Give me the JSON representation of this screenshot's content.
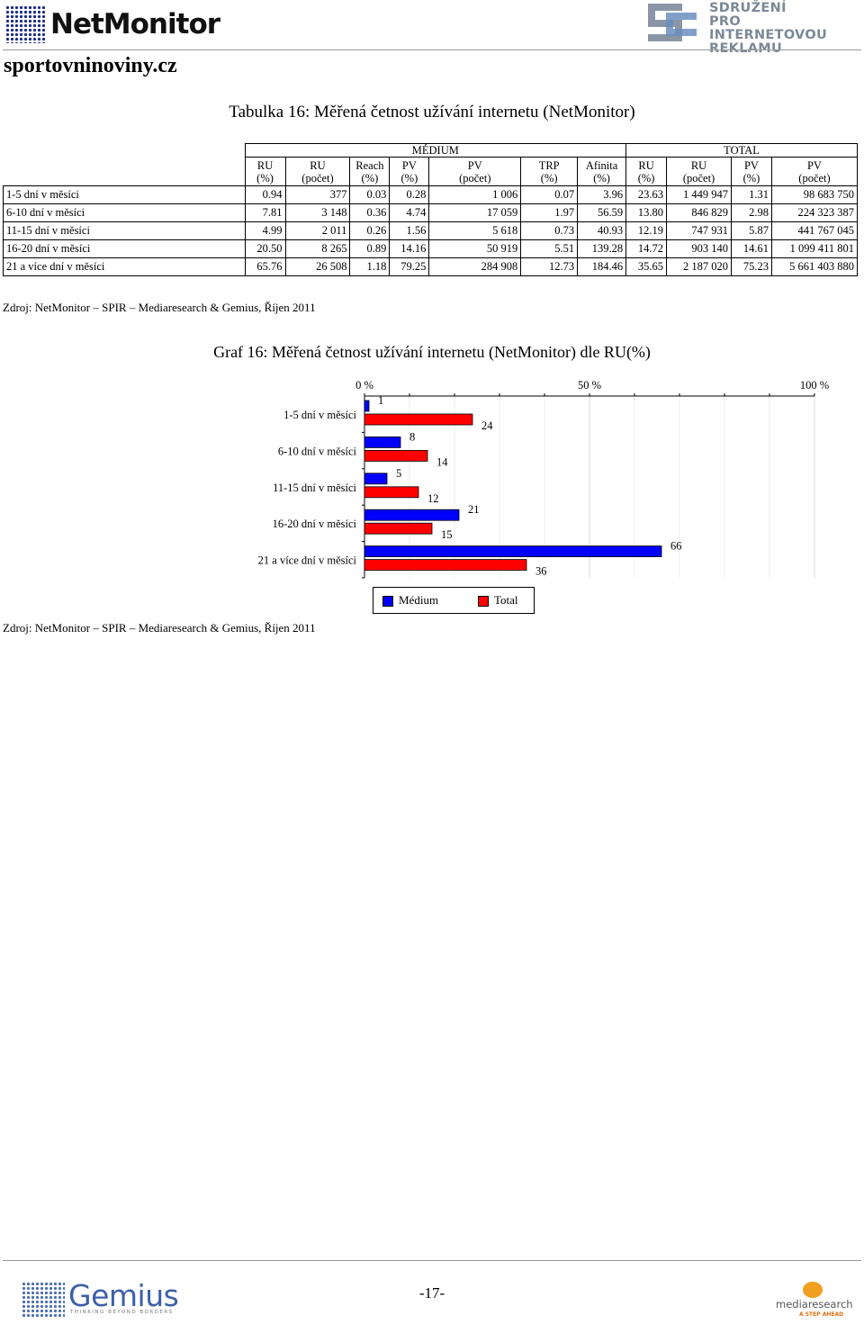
{
  "header": {
    "netmonitor_logo": "NetMonitor",
    "spir_logo_lines": [
      "SDRUŽENÍ",
      "PRO INTERNETOVOU",
      "REKLAMU"
    ],
    "site": "sportovninoviny.cz"
  },
  "table": {
    "title": "Tabulka 16: Měřená četnost užívání internetu (NetMonitor)",
    "group_headers": [
      "MÉDIUM",
      "TOTAL"
    ],
    "medium_columns": [
      [
        "RU",
        "(%)"
      ],
      [
        "RU",
        "(počet)"
      ],
      [
        "Reach",
        "(%)"
      ],
      [
        "PV",
        "(%)"
      ],
      [
        "PV",
        "(počet)"
      ],
      [
        "TRP",
        "(%)"
      ],
      [
        "Afinita",
        "(%)"
      ]
    ],
    "total_columns": [
      [
        "RU",
        "(%)"
      ],
      [
        "RU",
        "(počet)"
      ],
      [
        "PV",
        "(%)"
      ],
      [
        "PV",
        "(počet)"
      ]
    ],
    "rows": [
      {
        "label": "1-5 dní v měsíci",
        "values": [
          "0.94",
          "377",
          "0.03",
          "0.28",
          "1 006",
          "0.07",
          "3.96",
          "23.63",
          "1 449 947",
          "1.31",
          "98 683 750"
        ]
      },
      {
        "label": "6-10 dní v měsíci",
        "values": [
          "7.81",
          "3 148",
          "0.36",
          "4.74",
          "17 059",
          "1.97",
          "56.59",
          "13.80",
          "846 829",
          "2.98",
          "224 323 387"
        ]
      },
      {
        "label": "11-15 dní v měsíci",
        "values": [
          "4.99",
          "2 011",
          "0.26",
          "1.56",
          "5 618",
          "0.73",
          "40.93",
          "12.19",
          "747 931",
          "5.87",
          "441 767 045"
        ]
      },
      {
        "label": "16-20 dní v měsíci",
        "values": [
          "20.50",
          "8 265",
          "0.89",
          "14.16",
          "50 919",
          "5.51",
          "139.28",
          "14.72",
          "903 140",
          "14.61",
          "1 099 411 801"
        ]
      },
      {
        "label": "21 a více dní v měsíci",
        "values": [
          "65.76",
          "26 508",
          "1.18",
          "79.25",
          "284 908",
          "12.73",
          "184.46",
          "35.65",
          "2 187 020",
          "75.23",
          "5 661 403 880"
        ]
      }
    ],
    "source": "Zdroj: NetMonitor – SPIR – Mediaresearch & Gemius, Říjen 2011"
  },
  "chart": {
    "title": "Graf 16: Měřená četnost užívání internetu (NetMonitor) dle RU(%)",
    "source": "Zdroj: NetMonitor – SPIR – Mediaresearch & Gemius, Říjen 2011"
  },
  "chart_data": {
    "type": "bar",
    "orientation": "horizontal",
    "categories": [
      "1-5 dní v měsíci",
      "6-10 dní v měsíci",
      "11-15 dní v měsíci",
      "16-20 dní v měsíci",
      "21 a více dní v měsíci"
    ],
    "series": [
      {
        "name": "Médium",
        "values": [
          1,
          8,
          5,
          21,
          66
        ],
        "color": "#0000ff"
      },
      {
        "name": "Total",
        "values": [
          24,
          14,
          12,
          15,
          36
        ],
        "color": "#ff0000"
      }
    ],
    "xlim": [
      0,
      100
    ],
    "x_ticks": [
      "0 %",
      "50 %",
      "100 %"
    ],
    "axis_position": "top",
    "grid": true,
    "legend": "bottom"
  },
  "footer": {
    "page_number": "-17-",
    "gemius_logo": "Gemius",
    "gemius_tagline": "THINKING BEYOND BORDERS",
    "mediaresearch_logo": "mediaresearch",
    "mediaresearch_tagline": "A STEP AHEAD"
  }
}
